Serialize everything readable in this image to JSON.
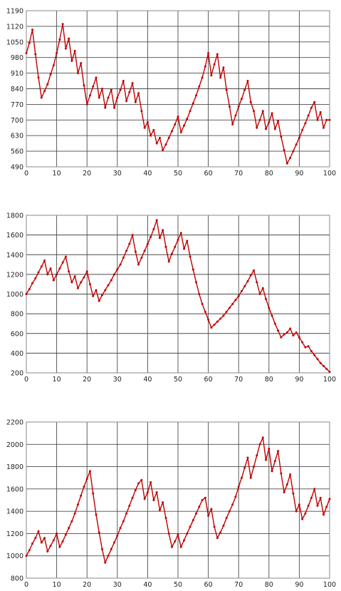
{
  "colors": {
    "series": "#c00000",
    "grid": "#4a4a4a",
    "frame": "#8a8a8a",
    "background": "#ffffff"
  },
  "chart_data": [
    {
      "type": "line",
      "title": "",
      "xlabel": "",
      "ylabel": "",
      "grid": true,
      "xlim": [
        0,
        100
      ],
      "ylim": [
        490,
        1190
      ],
      "xticks": [
        0,
        10,
        20,
        30,
        40,
        50,
        60,
        70,
        80,
        90,
        100
      ],
      "yticks": [
        490,
        560,
        630,
        700,
        770,
        840,
        910,
        980,
        1050,
        1120,
        1190
      ],
      "x": [
        0,
        1,
        2,
        3,
        4,
        5,
        6,
        7,
        8,
        9,
        10,
        11,
        12,
        13,
        14,
        15,
        16,
        17,
        18,
        19,
        20,
        21,
        22,
        23,
        24,
        25,
        26,
        27,
        28,
        29,
        30,
        31,
        32,
        33,
        34,
        35,
        36,
        37,
        38,
        39,
        40,
        41,
        42,
        43,
        44,
        45,
        46,
        47,
        48,
        49,
        50,
        51,
        52,
        53,
        54,
        55,
        56,
        57,
        58,
        59,
        60,
        61,
        62,
        63,
        64,
        65,
        66,
        67,
        68,
        69,
        70,
        71,
        72,
        73,
        74,
        75,
        76,
        77,
        78,
        79,
        80,
        81,
        82,
        83,
        84,
        85,
        86,
        87,
        88,
        89,
        90,
        91,
        92,
        93,
        94,
        95,
        96,
        97,
        98,
        99,
        100
      ],
      "series": [
        {
          "values": [
            1000,
            1045,
            1105,
            995,
            890,
            800,
            830,
            860,
            905,
            945,
            1000,
            1060,
            1130,
            1020,
            1065,
            965,
            1010,
            910,
            955,
            855,
            770,
            810,
            850,
            890,
            800,
            840,
            755,
            800,
            835,
            755,
            800,
            835,
            875,
            785,
            825,
            865,
            780,
            820,
            740,
            665,
            690,
            630,
            655,
            595,
            620,
            565,
            590,
            620,
            650,
            680,
            715,
            645,
            675,
            705,
            740,
            775,
            810,
            850,
            890,
            940,
            1000,
            900,
            950,
            995,
            890,
            935,
            835,
            760,
            680,
            720,
            760,
            795,
            835,
            875,
            780,
            740,
            665,
            700,
            740,
            660,
            690,
            730,
            660,
            695,
            625,
            565,
            505,
            530,
            560,
            590,
            620,
            655,
            685,
            720,
            755,
            780,
            700,
            735,
            665,
            700,
            700
          ]
        }
      ]
    },
    {
      "type": "line",
      "title": "",
      "xlabel": "",
      "ylabel": "",
      "grid": true,
      "xlim": [
        0,
        100
      ],
      "ylim": [
        200,
        1800
      ],
      "xticks": [
        0,
        10,
        20,
        30,
        40,
        50,
        60,
        70,
        80,
        90,
        100
      ],
      "yticks": [
        200,
        400,
        600,
        800,
        1000,
        1200,
        1400,
        1600,
        1800
      ],
      "x": [
        0,
        1,
        2,
        3,
        4,
        5,
        6,
        7,
        8,
        9,
        10,
        11,
        12,
        13,
        14,
        15,
        16,
        17,
        18,
        19,
        20,
        21,
        22,
        23,
        24,
        25,
        26,
        27,
        28,
        29,
        30,
        31,
        32,
        33,
        34,
        35,
        36,
        37,
        38,
        39,
        40,
        41,
        42,
        43,
        44,
        45,
        46,
        47,
        48,
        49,
        50,
        51,
        52,
        53,
        54,
        55,
        56,
        57,
        58,
        59,
        60,
        61,
        62,
        63,
        64,
        65,
        66,
        67,
        68,
        69,
        70,
        71,
        72,
        73,
        74,
        75,
        76,
        77,
        78,
        79,
        80,
        81,
        82,
        83,
        84,
        85,
        86,
        87,
        88,
        89,
        90,
        91,
        92,
        93,
        94,
        95,
        96,
        97,
        98,
        99,
        100
      ],
      "series": [
        {
          "values": [
            1000,
            1050,
            1110,
            1160,
            1220,
            1280,
            1340,
            1200,
            1260,
            1140,
            1200,
            1260,
            1320,
            1380,
            1230,
            1120,
            1180,
            1060,
            1120,
            1170,
            1230,
            1100,
            980,
            1040,
            930,
            990,
            1040,
            1090,
            1140,
            1200,
            1250,
            1300,
            1370,
            1440,
            1510,
            1600,
            1430,
            1300,
            1370,
            1440,
            1510,
            1580,
            1660,
            1750,
            1570,
            1650,
            1480,
            1330,
            1410,
            1480,
            1550,
            1620,
            1460,
            1540,
            1380,
            1250,
            1120,
            1000,
            900,
            820,
            740,
            660,
            690,
            720,
            750,
            780,
            820,
            860,
            900,
            940,
            980,
            1030,
            1080,
            1130,
            1190,
            1240,
            1120,
            1000,
            1060,
            950,
            860,
            780,
            700,
            630,
            560,
            590,
            610,
            650,
            580,
            610,
            560,
            510,
            460,
            470,
            420,
            380,
            340,
            300,
            270,
            240,
            210
          ]
        }
      ]
    },
    {
      "type": "line",
      "title": "",
      "xlabel": "",
      "ylabel": "",
      "grid": true,
      "xlim": [
        0,
        100
      ],
      "ylim": [
        800,
        2200
      ],
      "xticks": [
        0,
        10,
        20,
        30,
        40,
        50,
        60,
        70,
        80,
        90,
        100
      ],
      "yticks": [
        800,
        1000,
        1200,
        1400,
        1600,
        1800,
        2000,
        2200
      ],
      "x": [
        0,
        1,
        2,
        3,
        4,
        5,
        6,
        7,
        8,
        9,
        10,
        11,
        12,
        13,
        14,
        15,
        16,
        17,
        18,
        19,
        20,
        21,
        22,
        23,
        24,
        25,
        26,
        27,
        28,
        29,
        30,
        31,
        32,
        33,
        34,
        35,
        36,
        37,
        38,
        39,
        40,
        41,
        42,
        43,
        44,
        45,
        46,
        47,
        48,
        49,
        50,
        51,
        52,
        53,
        54,
        55,
        56,
        57,
        58,
        59,
        60,
        61,
        62,
        63,
        64,
        65,
        66,
        67,
        68,
        69,
        70,
        71,
        72,
        73,
        74,
        75,
        76,
        77,
        78,
        79,
        80,
        81,
        82,
        83,
        84,
        85,
        86,
        87,
        88,
        89,
        90,
        91,
        92,
        93,
        94,
        95,
        96,
        97,
        98,
        99,
        100
      ],
      "series": [
        {
          "values": [
            1000,
            1050,
            1110,
            1160,
            1220,
            1120,
            1160,
            1040,
            1090,
            1140,
            1200,
            1080,
            1130,
            1190,
            1250,
            1310,
            1380,
            1460,
            1540,
            1620,
            1690,
            1760,
            1560,
            1370,
            1210,
            1060,
            940,
            1000,
            1060,
            1120,
            1180,
            1250,
            1310,
            1380,
            1450,
            1520,
            1590,
            1650,
            1680,
            1510,
            1570,
            1660,
            1500,
            1570,
            1410,
            1480,
            1340,
            1200,
            1080,
            1130,
            1190,
            1080,
            1140,
            1200,
            1260,
            1320,
            1380,
            1440,
            1500,
            1520,
            1360,
            1420,
            1260,
            1160,
            1210,
            1270,
            1340,
            1400,
            1460,
            1530,
            1620,
            1700,
            1790,
            1880,
            1700,
            1800,
            1900,
            2000,
            2060,
            1860,
            1960,
            1760,
            1850,
            1940,
            1740,
            1570,
            1640,
            1730,
            1560,
            1400,
            1460,
            1330,
            1380,
            1450,
            1520,
            1600,
            1450,
            1520,
            1370,
            1440,
            1510
          ]
        }
      ]
    }
  ]
}
